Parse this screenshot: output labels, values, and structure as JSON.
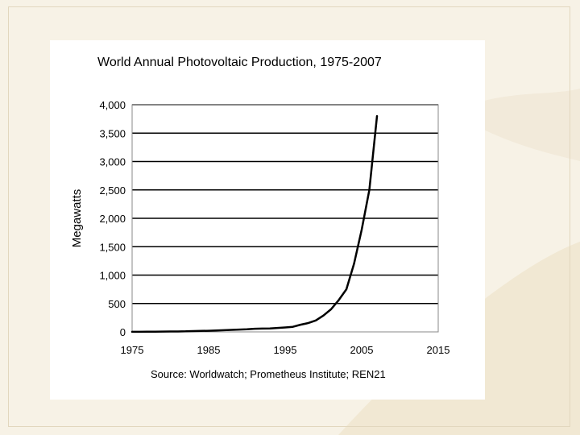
{
  "chart_data": {
    "type": "line",
    "title": "World Annual Photovoltaic Production, 1975-2007",
    "xlabel": "",
    "ylabel": "Megawatts",
    "source_note": "Source: Worldwatch; Prometheus Institute; REN21",
    "xlim": [
      1975,
      2015
    ],
    "ylim": [
      0,
      4000
    ],
    "x_ticks": [
      "1975",
      "1985",
      "1995",
      "2005",
      "2015"
    ],
    "y_ticks": [
      "0",
      "500",
      "1,000",
      "1,500",
      "2,000",
      "2,500",
      "3,000",
      "3,500",
      "4,000"
    ],
    "grid": "horizontal",
    "legend": "none",
    "series": [
      {
        "color": "#000000",
        "x": [
          1975,
          1976,
          1977,
          1978,
          1979,
          1980,
          1981,
          1982,
          1983,
          1984,
          1985,
          1986,
          1987,
          1988,
          1989,
          1990,
          1991,
          1992,
          1993,
          1994,
          1995,
          1996,
          1997,
          1998,
          1999,
          2000,
          2001,
          2002,
          2003,
          2004,
          2005,
          2006,
          2007
        ],
        "y": [
          2,
          2,
          3,
          4,
          5,
          7,
          8,
          10,
          15,
          17,
          20,
          25,
          30,
          35,
          40,
          46,
          55,
          58,
          60,
          69,
          78,
          89,
          126,
          155,
          201,
          288,
          399,
          560,
          750,
          1200,
          1800,
          2500,
          3800
        ]
      }
    ]
  },
  "colors": {
    "background": "#f7f2e6",
    "panel": "#ffffff",
    "gridline": "#000000",
    "line": "#000000"
  }
}
